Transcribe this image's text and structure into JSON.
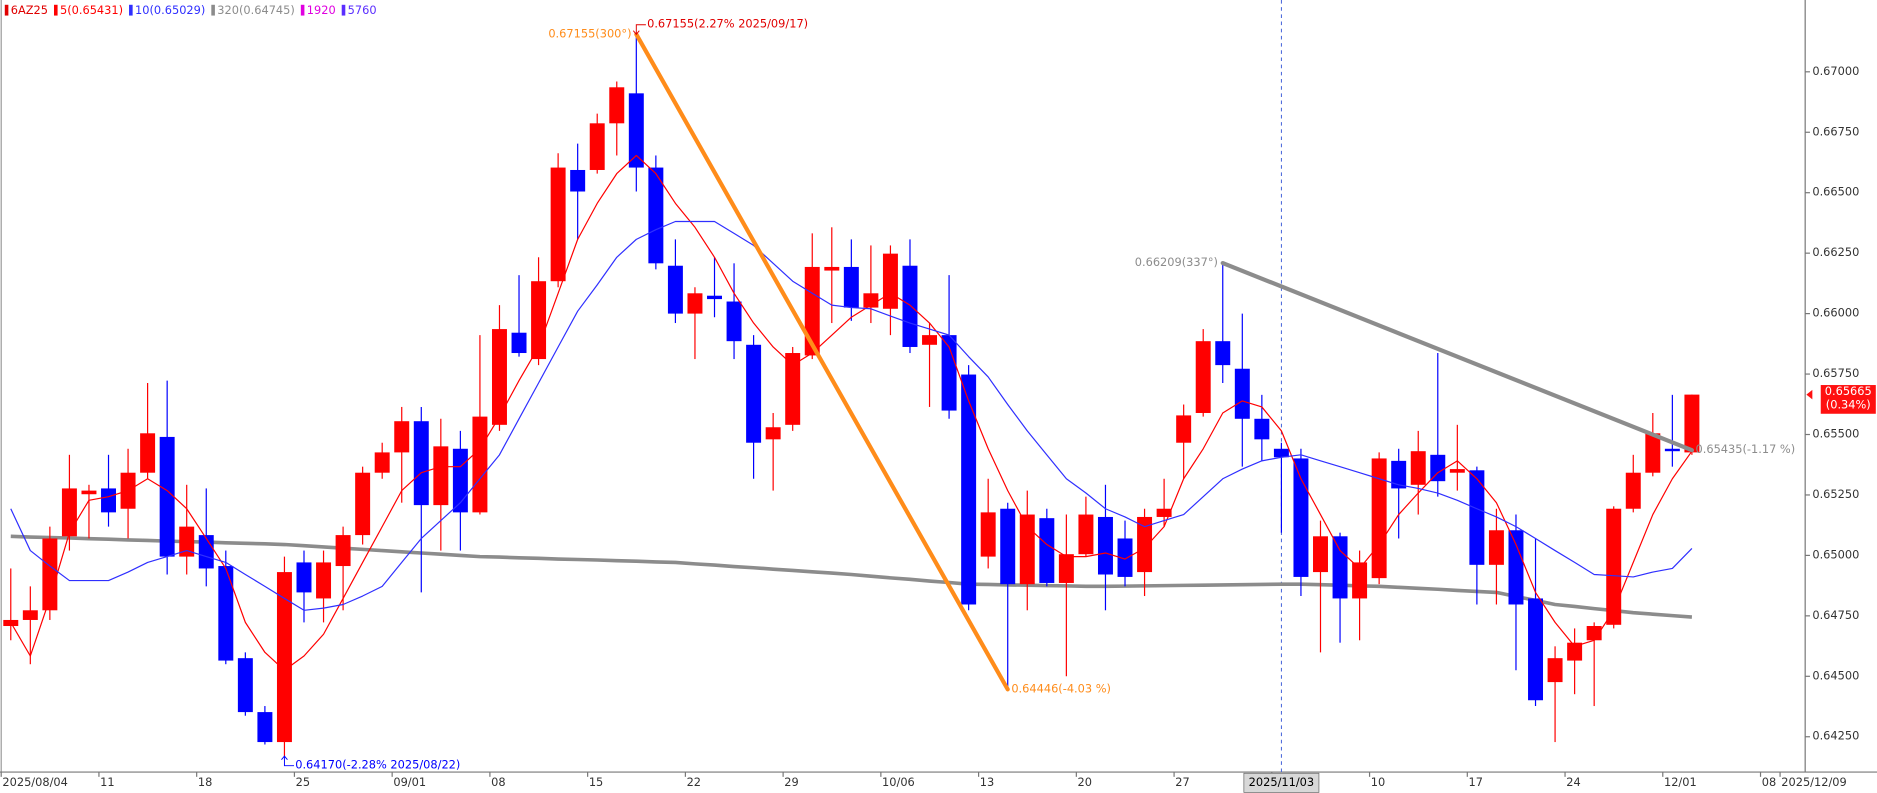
{
  "chart_data": {
    "type": "candlestick",
    "symbol": "6AZ25",
    "symbol_color": "#e00000",
    "up_color": "#ff0000",
    "down_color": "#0000ff",
    "categories": [
      "2025/08/04",
      null,
      null,
      null,
      null,
      "11",
      null,
      null,
      null,
      null,
      "18",
      null,
      null,
      null,
      null,
      "25",
      null,
      null,
      null,
      null,
      "09/01",
      null,
      null,
      null,
      null,
      "08",
      null,
      null,
      null,
      null,
      "15",
      null,
      null,
      null,
      null,
      "22",
      null,
      null,
      null,
      null,
      "29",
      null,
      null,
      null,
      null,
      "10/06",
      null,
      null,
      null,
      null,
      "13",
      null,
      null,
      null,
      null,
      "20",
      null,
      null,
      null,
      null,
      "27",
      null,
      null,
      null,
      null,
      "2025/11/03",
      null,
      null,
      null,
      null,
      "10",
      null,
      null,
      null,
      null,
      "17",
      null,
      null,
      null,
      null,
      "24",
      null,
      null,
      null,
      null,
      "12/01",
      null,
      null,
      null,
      null,
      "08",
      "2025/12/09"
    ],
    "open": [
      0.64708,
      0.64733,
      0.64773,
      0.65079,
      0.65253,
      0.65277,
      0.65193,
      0.65342,
      0.6549,
      0.64995,
      0.65084,
      0.64956,
      0.64575,
      0.64352,
      0.64228,
      0.64971,
      0.64822,
      0.64956,
      0.65084,
      0.65342,
      0.65426,
      0.65555,
      0.65208,
      0.65441,
      0.65178,
      0.6554,
      0.65921,
      0.65812,
      0.66134,
      0.66594,
      0.66594,
      0.66787,
      0.66911,
      0.66604,
      0.66198,
      0.66,
      0.66074,
      0.6605,
      0.65871,
      0.6548,
      0.6554,
      0.65827,
      0.66178,
      0.66193,
      0.66025,
      0.6602,
      0.66198,
      0.65871,
      0.65911,
      0.65748,
      0.64995,
      0.65193,
      0.64881,
      0.65154,
      0.64886,
      0.65005,
      0.65159,
      0.6507,
      0.64931,
      0.65159,
      0.65466,
      0.65589,
      0.65886,
      0.65772,
      0.65565,
      0.65441,
      0.65401,
      0.64931,
      0.65079,
      0.64822,
      0.64906,
      0.65391,
      0.65292,
      0.65416,
      0.65342,
      0.65352,
      0.64961,
      0.65104,
      0.64822,
      0.64476,
      0.64565,
      0.64649,
      0.64713,
      0.65193,
      0.65342,
      0.65441,
      0.65426,
      null,
      null,
      null,
      null,
      null
    ],
    "high": [
      0.64946,
      0.64872,
      0.65119,
      0.65416,
      0.65292,
      0.65416,
      0.65441,
      0.65713,
      0.65723,
      0.65292,
      0.65277,
      0.6502,
      0.64599,
      0.64377,
      0.64995,
      0.6502,
      0.6502,
      0.65119,
      0.65367,
      0.65466,
      0.65614,
      0.65614,
      0.65565,
      0.65515,
      0.65911,
      0.66035,
      0.66159,
      0.66233,
      0.66663,
      0.66703,
      0.66827,
      0.6696,
      0.67155,
      0.66654,
      0.66307,
      0.66109,
      0.66233,
      0.66208,
      0.65911,
      0.65589,
      0.65862,
      0.66332,
      0.66357,
      0.66307,
      0.66282,
      0.66282,
      0.66307,
      0.65961,
      0.66159,
      0.65787,
      0.65317,
      0.65218,
      0.65268,
      0.65193,
      0.65169,
      0.65243,
      0.65292,
      0.65144,
      0.65193,
      0.65317,
      0.65624,
      0.65936,
      0.66209,
      0.66,
      0.65664,
      0.65466,
      0.65441,
      0.65144,
      0.65094,
      0.6502,
      0.65426,
      0.65441,
      0.65515,
      0.65837,
      0.6554,
      0.65367,
      0.65193,
      0.65169,
      0.6507,
      0.64624,
      0.64698,
      0.64723,
      0.65203,
      0.65416,
      0.65589,
      0.65664,
      0.65665,
      null,
      null,
      null,
      null,
      null
    ],
    "low": [
      0.64649,
      0.6455,
      0.64733,
      0.6502,
      0.6507,
      0.65119,
      0.6507,
      0.65317,
      0.64921,
      0.64921,
      0.64872,
      0.6455,
      0.64337,
      0.64218,
      0.6417,
      0.64723,
      0.64723,
      0.64773,
      0.65045,
      0.65317,
      0.65218,
      0.64847,
      0.6502,
      0.6502,
      0.65169,
      0.65515,
      0.65822,
      0.65787,
      0.66109,
      0.66307,
      0.66579,
      0.66654,
      0.66505,
      0.66183,
      0.65961,
      0.65812,
      0.65985,
      0.65812,
      0.65317,
      0.65268,
      0.65515,
      0.65812,
      0.65961,
      0.6597,
      0.65961,
      0.65911,
      0.65837,
      0.65614,
      0.65565,
      0.64773,
      0.64946,
      0.64446,
      0.64773,
      0.64872,
      0.645,
      0.64995,
      0.64773,
      0.64872,
      0.64832,
      0.65119,
      0.65317,
      0.65574,
      0.65713,
      0.65367,
      0.65391,
      0.65094,
      0.64832,
      0.64599,
      0.64639,
      0.64649,
      0.64881,
      0.6507,
      0.65169,
      0.65243,
      0.65268,
      0.64797,
      0.64797,
      0.64525,
      0.64377,
      0.64228,
      0.64426,
      0.64377,
      0.64698,
      0.65178,
      0.65327,
      0.65367,
      0.65416,
      null,
      null,
      null,
      null,
      null
    ],
    "close": [
      0.64733,
      0.64773,
      0.6507,
      0.65277,
      0.65268,
      0.65178,
      0.65342,
      0.65505,
      0.64995,
      0.65119,
      0.64946,
      0.64565,
      0.64352,
      0.64228,
      0.64931,
      0.64847,
      0.64971,
      0.65084,
      0.65342,
      0.65426,
      0.65555,
      0.65208,
      0.65451,
      0.65178,
      0.65574,
      0.65936,
      0.65837,
      0.66134,
      0.66604,
      0.66505,
      0.66787,
      0.66936,
      0.66604,
      0.66208,
      0.66,
      0.66084,
      0.6606,
      0.65886,
      0.65466,
      0.6553,
      0.65837,
      0.66193,
      0.66193,
      0.66025,
      0.66084,
      0.66248,
      0.65862,
      0.65911,
      0.65599,
      0.64797,
      0.65178,
      0.64881,
      0.65169,
      0.64886,
      0.65005,
      0.65169,
      0.64921,
      0.64911,
      0.65159,
      0.65193,
      0.65579,
      0.65886,
      0.65787,
      0.65565,
      0.6548,
      0.65406,
      0.64911,
      0.65079,
      0.64822,
      0.64971,
      0.65401,
      0.65277,
      0.65431,
      0.65307,
      0.65357,
      0.64961,
      0.65104,
      0.64797,
      0.64401,
      0.64575,
      0.64639,
      0.64708,
      0.65193,
      0.65342,
      0.65505,
      0.65431,
      0.65665,
      null,
      null,
      null,
      null,
      null
    ],
    "series": [
      {
        "name": "5(0.65431)",
        "color": "#ff0000",
        "width": 1,
        "values": [
          0.64723,
          0.64584,
          0.64822,
          0.65094,
          0.65228,
          0.65243,
          0.65268,
          0.65317,
          0.65268,
          0.65193,
          0.6507,
          0.64946,
          0.64723,
          0.64599,
          0.64525,
          0.64584,
          0.64674,
          0.64822,
          0.64971,
          0.65119,
          0.65268,
          0.65342,
          0.65367,
          0.65367,
          0.65441,
          0.65574,
          0.65723,
          0.65862,
          0.66084,
          0.66307,
          0.66456,
          0.66579,
          0.66654,
          0.66579,
          0.66456,
          0.66357,
          0.66233,
          0.66084,
          0.65961,
          0.65862,
          0.65787,
          0.65837,
          0.65911,
          0.65985,
          0.66035,
          0.66084,
          0.66035,
          0.65961,
          0.65862,
          0.65639,
          0.65441,
          0.65268,
          0.65119,
          0.65045,
          0.64995,
          0.64995,
          0.6501,
          0.64985,
          0.6503,
          0.65119,
          0.65317,
          0.65441,
          0.65589,
          0.65639,
          0.65614,
          0.65515,
          0.65317,
          0.65169,
          0.6502,
          0.64946,
          0.65045,
          0.65169,
          0.65258,
          0.65342,
          0.65391,
          0.65317,
          0.65218,
          0.65045,
          0.64847,
          0.64723,
          0.64624,
          0.64649,
          0.64773,
          0.64971,
          0.65169,
          0.65317,
          0.65431,
          null,
          null,
          null,
          null,
          null
        ]
      },
      {
        "name": "10(0.65029)",
        "color": "#2f2fff",
        "width": 1,
        "values": [
          0.65193,
          0.6502,
          0.64956,
          0.64896,
          0.64896,
          0.64896,
          0.64931,
          0.64971,
          0.64995,
          0.6502,
          0.64995,
          0.64971,
          0.64921,
          0.64872,
          0.64822,
          0.64773,
          0.64782,
          0.64797,
          0.64832,
          0.64872,
          0.64971,
          0.6507,
          0.65144,
          0.65218,
          0.65317,
          0.65416,
          0.65565,
          0.65713,
          0.65862,
          0.6601,
          0.66119,
          0.66233,
          0.66307,
          0.66347,
          0.66381,
          0.66381,
          0.66381,
          0.66332,
          0.66282,
          0.66208,
          0.66134,
          0.66084,
          0.66035,
          0.66025,
          0.6602,
          0.6599,
          0.65961,
          0.65936,
          0.65911,
          0.65822,
          0.65738,
          0.65624,
          0.65515,
          0.65416,
          0.65317,
          0.65258,
          0.65193,
          0.65159,
          0.65119,
          0.65144,
          0.65169,
          0.65243,
          0.65317,
          0.65357,
          0.65391,
          0.65406,
          0.65416,
          0.65391,
          0.65367,
          0.65342,
          0.65317,
          0.65292,
          0.65277,
          0.65258,
          0.65228,
          0.65193,
          0.65159,
          0.65119,
          0.6507,
          0.6502,
          0.64971,
          0.64921,
          0.64916,
          0.64911,
          0.64931,
          0.64946,
          0.65029,
          null,
          null,
          null,
          null,
          null
        ]
      },
      {
        "name": "320(0.64745)",
        "color": "#8c8c8c",
        "width": 3,
        "values": [
          0.65079,
          0.65076,
          0.65074,
          0.65072,
          0.65069,
          0.65067,
          0.65064,
          0.65062,
          0.65059,
          0.65057,
          0.65055,
          0.65052,
          0.6505,
          0.65048,
          0.65045,
          0.6504,
          0.65035,
          0.6503,
          0.65025,
          0.6502,
          0.65015,
          0.6501,
          0.65005,
          0.65,
          0.64995,
          0.64993,
          0.6499,
          0.64988,
          0.64985,
          0.64983,
          0.64981,
          0.64978,
          0.64976,
          0.64973,
          0.64971,
          0.64965,
          0.6496,
          0.64954,
          0.64949,
          0.64943,
          0.64938,
          0.64932,
          0.64927,
          0.64921,
          0.64914,
          0.64907,
          0.64901,
          0.64894,
          0.64888,
          0.64881,
          0.6488,
          0.64878,
          0.64877,
          0.64875,
          0.64874,
          0.64872,
          0.64872,
          0.64873,
          0.64874,
          0.64875,
          0.64876,
          0.64877,
          0.64878,
          0.64879,
          0.6488,
          0.64881,
          0.64881,
          0.64879,
          0.64877,
          0.64874,
          0.64872,
          0.64868,
          0.64864,
          0.6486,
          0.64855,
          0.64851,
          0.64847,
          0.6483,
          0.64814,
          0.64797,
          0.64789,
          0.6478,
          0.64772,
          0.64763,
          0.64757,
          0.64751,
          0.64745,
          null,
          null,
          null,
          null,
          null
        ]
      }
    ],
    "extra_legend": [
      {
        "name": "1920",
        "color": "#e000e0"
      },
      {
        "name": "5760",
        "color": "#5a2dff"
      }
    ],
    "ylim": [
      0.64104,
      0.67297
    ],
    "yticks": [
      {
        "value": 0.67,
        "label": "0.67000"
      },
      {
        "value": 0.6675,
        "label": "0.66750"
      },
      {
        "value": 0.665,
        "label": "0.66500"
      },
      {
        "value": 0.6625,
        "label": "0.66250"
      },
      {
        "value": 0.66,
        "label": "0.66000"
      },
      {
        "value": 0.6575,
        "label": "0.65750"
      },
      {
        "value": 0.655,
        "label": "0.65500"
      },
      {
        "value": 0.6525,
        "label": "0.65250"
      },
      {
        "value": 0.65,
        "label": "0.65000"
      },
      {
        "value": 0.6475,
        "label": "0.64750"
      },
      {
        "value": 0.645,
        "label": "0.64500"
      },
      {
        "value": 0.6425,
        "label": "0.64250"
      }
    ],
    "grid": false,
    "highlight_index": 65,
    "trendlines": [
      {
        "color": "#ff8c1a",
        "start": {
          "index": 32,
          "value": 0.67155,
          "label": "0.67155(300°)"
        },
        "end": {
          "index": 51,
          "value": 0.64446,
          "label": "0.64446(-4.03 %)"
        }
      },
      {
        "color": "#8c8c8c",
        "start": {
          "index": 62,
          "value": 0.66209,
          "label": "0.66209(337°)"
        },
        "end": {
          "index": 86,
          "value": 0.65435,
          "label": "0.65435(-1.17 %)"
        }
      }
    ],
    "markers": [
      {
        "index": 32,
        "value": 0.67155,
        "label": "0.67155(2.27% 2025/09/17)",
        "color": "#e00000",
        "side": "high"
      },
      {
        "index": 14,
        "value": 0.6417,
        "label": "0.64170(-2.28% 2025/08/22)",
        "color": "#0000ff",
        "side": "low"
      }
    ],
    "last_price": {
      "value": 0.65665,
      "change": "(0.34%)",
      "color": "#ff1010"
    }
  }
}
